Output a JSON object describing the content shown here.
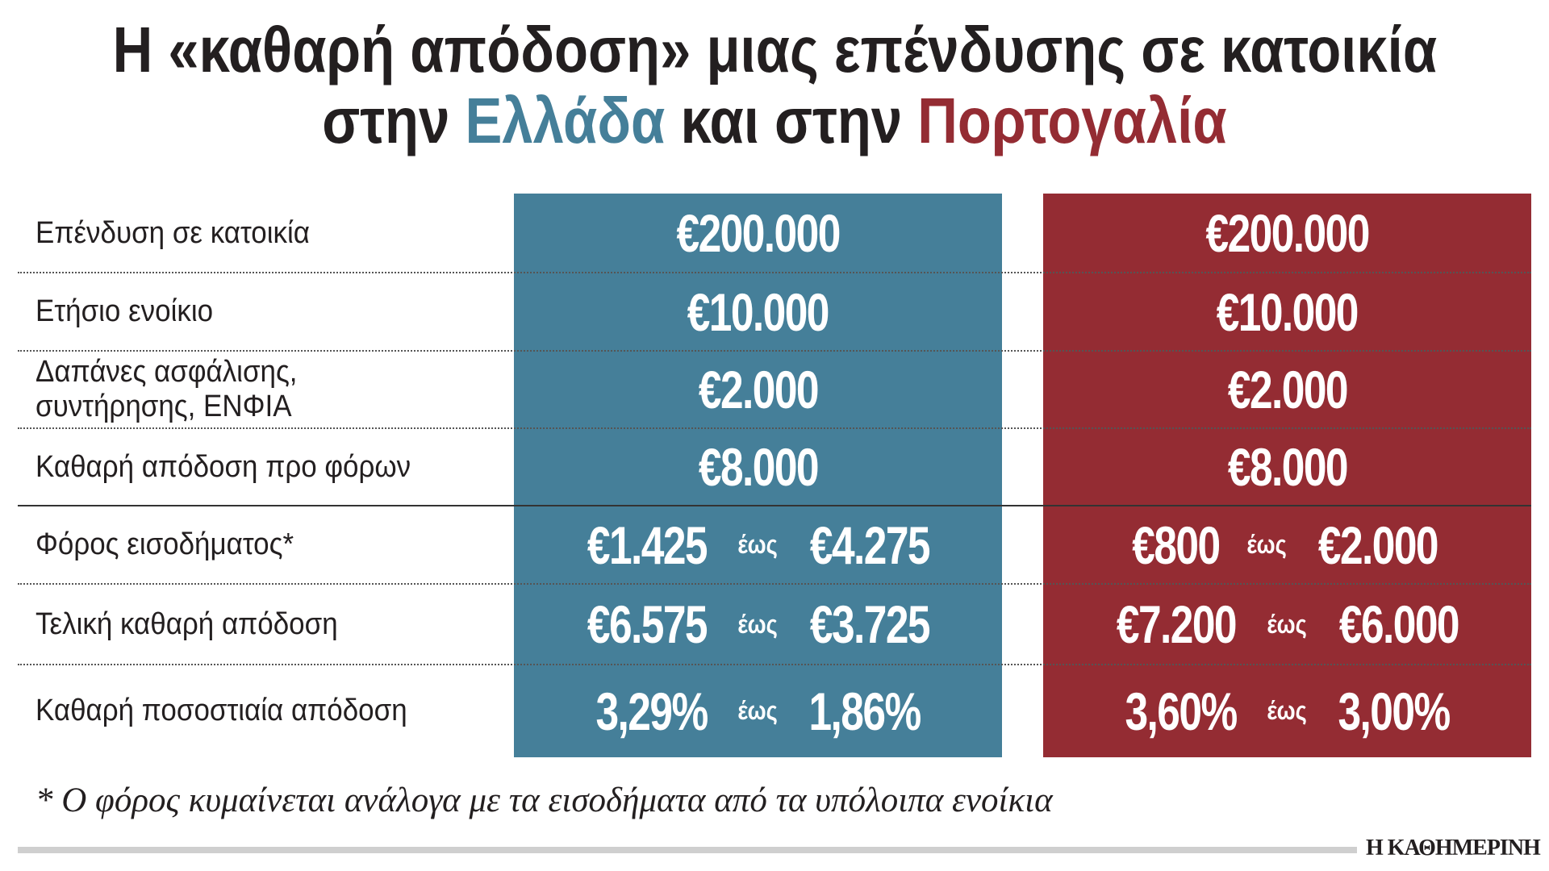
{
  "title": {
    "line1": "Η «καθαρή απόδοση» μιας επένδυσης σε κατοικία",
    "line2_pre": "στην ",
    "line2_greece": "Ελλάδα",
    "line2_mid": " και στην ",
    "line2_portugal": "Πορτογαλία"
  },
  "colors": {
    "greece": "#457f99",
    "portugal": "#942c33"
  },
  "separator_word": "έως",
  "chart_data": {
    "type": "table",
    "title": "Η «καθαρή απόδοση» μιας επένδυσης σε κατοικία στην Ελλάδα και στην Πορτογαλία",
    "columns": [
      "Ελλάδα",
      "Πορτογαλία"
    ],
    "rows": [
      {
        "label": "Επένδυση σε κατοικία",
        "greece": "€200.000",
        "portugal": "€200.000"
      },
      {
        "label": "Ετήσιο ενοίκιο",
        "greece": "€10.000",
        "portugal": "€10.000"
      },
      {
        "label": "Δαπάνες ασφάλισης, συντήρησης, ΕΝΦΙΑ",
        "greece": "€2.000",
        "portugal": "€2.000"
      },
      {
        "label": "Καθαρή απόδοση προ φόρων",
        "greece": "€8.000",
        "portugal": "€8.000"
      },
      {
        "label": "Φόρος εισοδήματος*",
        "greece": [
          "€1.425",
          "€4.275"
        ],
        "portugal": [
          "€800",
          "€2.000"
        ]
      },
      {
        "label": "Τελική καθαρή απόδοση",
        "greece": [
          "€6.575",
          "€3.725"
        ],
        "portugal": [
          "€7.200",
          "€6.000"
        ]
      },
      {
        "label": "Καθαρή ποσοστιαία απόδοση",
        "greece": [
          "3,29%",
          "1,86%"
        ],
        "portugal": [
          "3,60%",
          "3,00%"
        ]
      }
    ]
  },
  "footnote": "* Ο φόρος κυμαίνεται ανάλογα με τα εισοδήματα από τα υπόλοιπα ενοίκια",
  "logo": "Η ΚΑΘΗΜΕΡΙΝΗ"
}
